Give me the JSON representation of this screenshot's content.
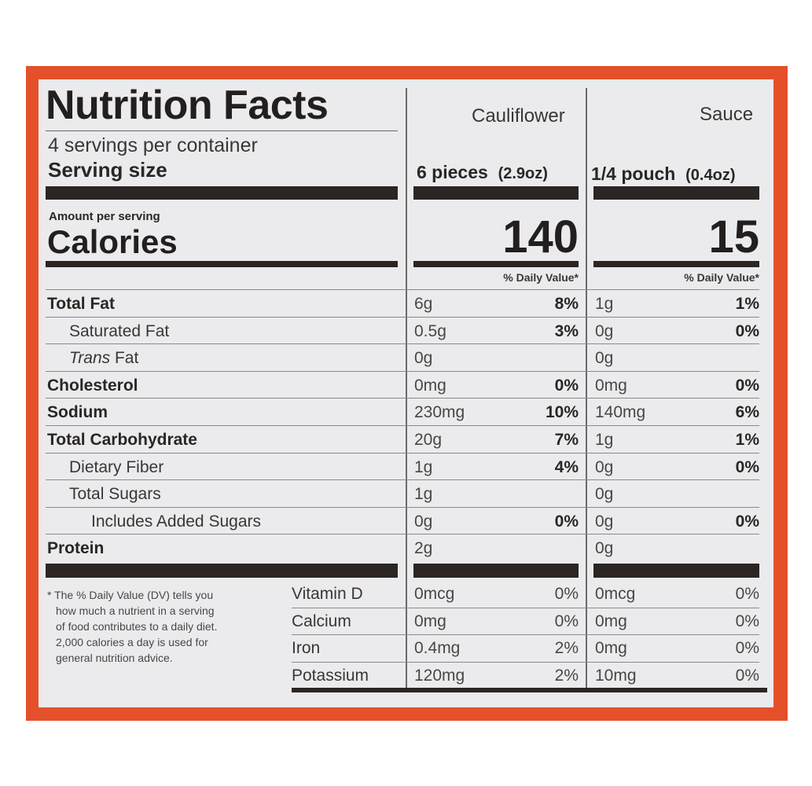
{
  "label": {
    "title": "Nutrition Facts",
    "columns": [
      "Cauliflower",
      "Sauce"
    ],
    "servings_per_container": "4 servings per container",
    "serving_size_label": "Serving size",
    "serving_sizes": [
      {
        "amount": "6 pieces",
        "weight": "(2.9oz)"
      },
      {
        "amount": "1/4 pouch",
        "weight": "(0.4oz)"
      }
    ],
    "amount_per_serving": "Amount per serving",
    "calories_label": "Calories",
    "calories": [
      "140",
      "15"
    ],
    "dv_header": "% Daily Value*",
    "nutrients": [
      {
        "label": "Total Fat",
        "bold": true,
        "indent": 0,
        "c1": "6g",
        "p1": "8%",
        "c2": "1g",
        "p2": "1%"
      },
      {
        "label": "Saturated Fat",
        "bold": false,
        "indent": 1,
        "c1": "0.5g",
        "p1": "3%",
        "c2": "0g",
        "p2": "0%"
      },
      {
        "label": "Trans Fat",
        "bold": false,
        "indent": 1,
        "italic_prefix": "Trans",
        "rest": " Fat",
        "c1": "0g",
        "p1": "",
        "c2": "0g",
        "p2": ""
      },
      {
        "label": "Cholesterol",
        "bold": true,
        "indent": 0,
        "c1": "0mg",
        "p1": "0%",
        "c2": "0mg",
        "p2": "0%"
      },
      {
        "label": "Sodium",
        "bold": true,
        "indent": 0,
        "c1": "230mg",
        "p1": "10%",
        "c2": "140mg",
        "p2": "6%"
      },
      {
        "label": "Total Carbohydrate",
        "bold": true,
        "indent": 0,
        "c1": "20g",
        "p1": "7%",
        "c2": "1g",
        "p2": "1%"
      },
      {
        "label": "Dietary Fiber",
        "bold": false,
        "indent": 1,
        "c1": "1g",
        "p1": "4%",
        "c2": "0g",
        "p2": "0%"
      },
      {
        "label": "Total Sugars",
        "bold": false,
        "indent": 1,
        "c1": "1g",
        "p1": "",
        "c2": "0g",
        "p2": ""
      },
      {
        "label": "Includes Added Sugars",
        "bold": false,
        "indent": 2,
        "c1": "0g",
        "p1": "0%",
        "c2": "0g",
        "p2": "0%"
      },
      {
        "label": "Protein",
        "bold": true,
        "indent": 0,
        "c1": "2g",
        "p1": "",
        "c2": "0g",
        "p2": ""
      }
    ],
    "vitamins": [
      {
        "label": "Vitamin D",
        "c1": "0mcg",
        "p1": "0%",
        "c2": "0mcg",
        "p2": "0%"
      },
      {
        "label": "Calcium",
        "c1": "0mg",
        "p1": "0%",
        "c2": "0mg",
        "p2": "0%"
      },
      {
        "label": "Iron",
        "c1": "0.4mg",
        "p1": "2%",
        "c2": "0mg",
        "p2": "0%"
      },
      {
        "label": "Potassium",
        "c1": "120mg",
        "p1": "2%",
        "c2": "10mg",
        "p2": "0%"
      }
    ],
    "footnote": [
      "* The % Daily Value (DV) tells you",
      "how much a nutrient in a serving",
      "of food contributes to a daily diet.",
      "2,000 calories a day is used for",
      "general nutrition advice."
    ],
    "colors": {
      "frame": "#e4502a",
      "panel": "#ebebee",
      "bar": "#2b2524"
    }
  }
}
